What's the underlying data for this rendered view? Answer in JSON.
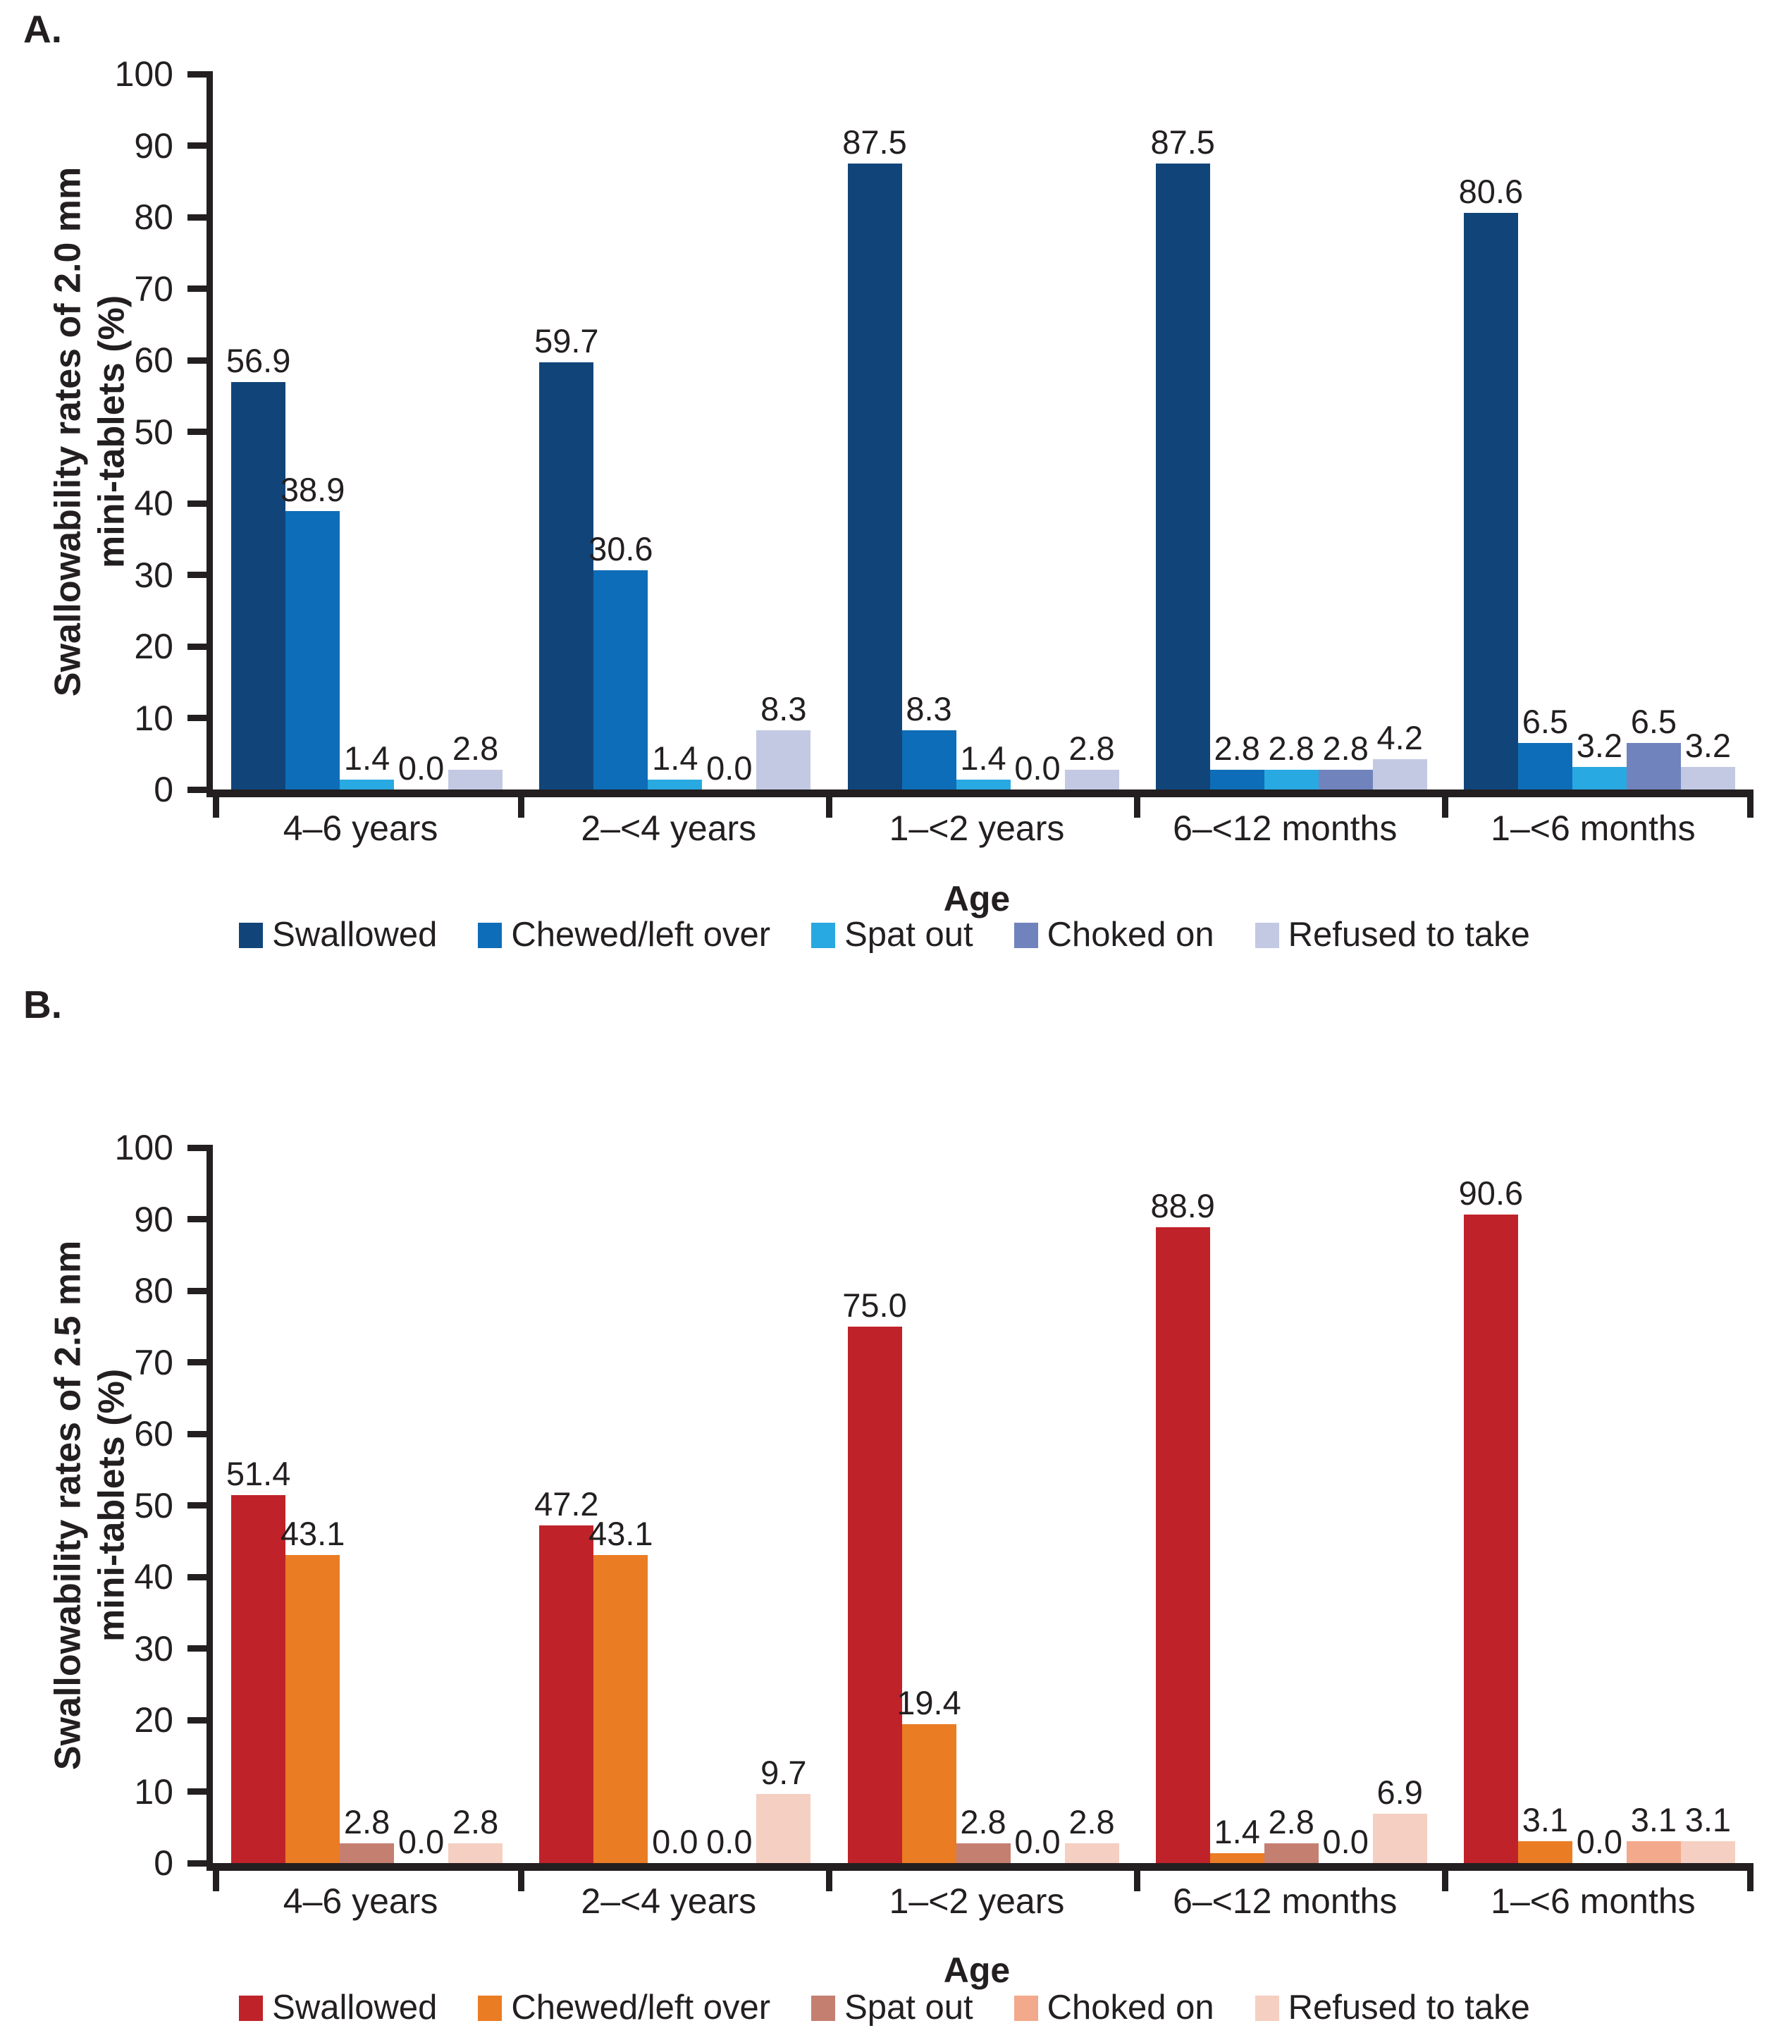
{
  "figure": {
    "xlabel": "Age",
    "text_color": "#231f20",
    "background_color": "#ffffff"
  },
  "chart_data": [
    {
      "type": "bar",
      "panel_label": "A.",
      "ylabel_line1": "Swallowability rates of 2.0 mm",
      "ylabel_line2": "mini-tablets (%)",
      "xlabel": "Age",
      "ylim": [
        0,
        100
      ],
      "ytick_step": 10,
      "grid": false,
      "legend_position": "bottom",
      "value_label_decimals": 1,
      "categories": [
        "4–6 years",
        "2–<4 years",
        "1–<2 years",
        "6–<12 months",
        "1–<6 months"
      ],
      "series": [
        {
          "name": "Swallowed",
          "color": "#114579",
          "values": [
            56.9,
            59.7,
            87.5,
            87.5,
            80.6
          ]
        },
        {
          "name": "Chewed/left over",
          "color": "#0e6db8",
          "values": [
            38.9,
            30.6,
            8.3,
            2.8,
            6.5
          ]
        },
        {
          "name": "Spat out",
          "color": "#29a9e1",
          "values": [
            1.4,
            1.4,
            1.4,
            2.8,
            3.2
          ]
        },
        {
          "name": "Choked on",
          "color": "#7183bd",
          "values": [
            0.0,
            0.0,
            0.0,
            2.8,
            6.5
          ]
        },
        {
          "name": "Refused to take",
          "color": "#c3c9e3",
          "values": [
            2.8,
            8.3,
            2.8,
            4.2,
            3.2
          ]
        }
      ]
    },
    {
      "type": "bar",
      "panel_label": "B.",
      "ylabel_line1": "Swallowability rates of 2.5 mm",
      "ylabel_line2": "mini-tablets (%)",
      "xlabel": "Age",
      "ylim": [
        0,
        100
      ],
      "ytick_step": 10,
      "grid": false,
      "legend_position": "bottom",
      "value_label_decimals": 1,
      "categories": [
        "4–6 years",
        "2–<4 years",
        "1–<2 years",
        "6–<12 months",
        "1–<6 months"
      ],
      "series": [
        {
          "name": "Swallowed",
          "color": "#c0222a",
          "values": [
            51.4,
            47.2,
            75.0,
            88.9,
            90.6
          ]
        },
        {
          "name": "Chewed/left over",
          "color": "#ea7c24",
          "values": [
            43.1,
            43.1,
            19.4,
            1.4,
            3.1
          ]
        },
        {
          "name": "Spat out",
          "color": "#c57f70",
          "values": [
            2.8,
            0.0,
            2.8,
            2.8,
            0.0
          ]
        },
        {
          "name": "Choked on",
          "color": "#f3a98b",
          "values": [
            0.0,
            0.0,
            0.0,
            0.0,
            3.1
          ]
        },
        {
          "name": "Refused to take",
          "color": "#f5cfc1",
          "values": [
            2.8,
            9.7,
            2.8,
            6.9,
            3.1
          ]
        }
      ]
    }
  ],
  "layout_note": "two stacked grouped bar charts"
}
